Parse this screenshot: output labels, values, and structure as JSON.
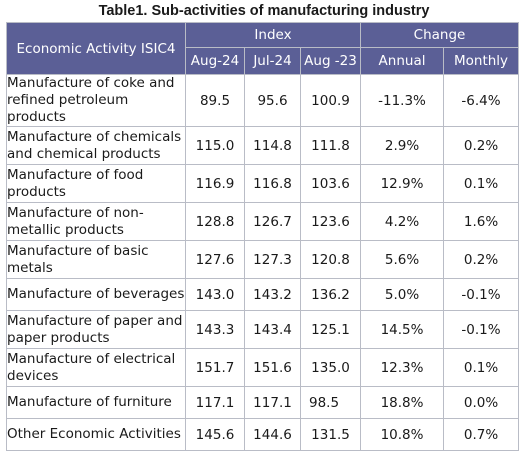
{
  "table": {
    "title": "Table1. Sub-activities of manufacturing industry",
    "header": {
      "activity": "Economic Activity ISIC4",
      "index_group": "Index",
      "change_group": "Change",
      "index_cols": [
        "Aug-24",
        "Jul-24",
        "Aug -23"
      ],
      "change_cols": [
        "Annual",
        "Monthly"
      ]
    },
    "rows": [
      {
        "name": "Manufacture of coke and refined petroleum products",
        "aug24": "89.5",
        "jul24": "95.6",
        "aug23": "100.9",
        "annual": "-11.3%",
        "monthly": "-6.4%"
      },
      {
        "name": "Manufacture of chemicals and chemical products",
        "aug24": "115.0",
        "jul24": "114.8",
        "aug23": "111.8",
        "annual": "2.9%",
        "monthly": "0.2%"
      },
      {
        "name": "Manufacture of food products",
        "aug24": "116.9",
        "jul24": "116.8",
        "aug23": "103.6",
        "annual": "12.9%",
        "monthly": "0.1%"
      },
      {
        "name": "Manufacture of non-metallic products",
        "aug24": "128.8",
        "jul24": "126.7",
        "aug23": "123.6",
        "annual": "4.2%",
        "monthly": "1.6%"
      },
      {
        "name": "Manufacture of basic metals",
        "aug24": "127.6",
        "jul24": "127.3",
        "aug23": "120.8",
        "annual": "5.6%",
        "monthly": "0.2%"
      },
      {
        "name": "Manufacture of beverages",
        "aug24": "143.0",
        "jul24": "143.2",
        "aug23": "136.2",
        "annual": "5.0%",
        "monthly": "-0.1%"
      },
      {
        "name": "Manufacture of paper and paper products",
        "aug24": "143.3",
        "jul24": "143.4",
        "aug23": "125.1",
        "annual": "14.5%",
        "monthly": "-0.1%"
      },
      {
        "name": "Manufacture of electrical devices",
        "aug24": "151.7",
        "jul24": "151.6",
        "aug23": "135.0",
        "annual": "12.3%",
        "monthly": "0.1%"
      },
      {
        "name": "Manufacture of furniture",
        "aug24": "117.1",
        "jul24": "117.1",
        "aug23": "98.5",
        "annual": "18.8%",
        "monthly": "0.0%"
      },
      {
        "name": "Other Economic Activities",
        "aug24": "145.6",
        "jul24": "144.6",
        "aug23": "131.5",
        "annual": "10.8%",
        "monthly": "0.7%"
      }
    ]
  },
  "colors": {
    "header_bg": "#5b5f96",
    "header_text": "#ffffff",
    "grid": "#b9bcc6"
  }
}
